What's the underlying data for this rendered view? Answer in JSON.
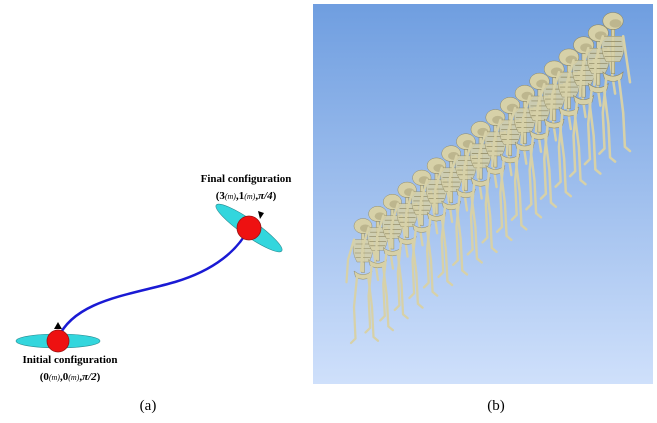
{
  "panel_a": {
    "caption": "(a)",
    "final_configuration": {
      "label": "Final configuration",
      "open_paren": "(",
      "x_value": "3",
      "y_value": "1",
      "unit": "(m)",
      "angle": "π/4",
      "close_paren": ")",
      "separator": ","
    },
    "initial_configuration": {
      "label": "Initial configuration",
      "open_paren": "(",
      "x_value": "0",
      "y_value": "0",
      "unit": "(m)",
      "angle": "π/2",
      "close_paren": ")",
      "separator": ","
    },
    "colors": {
      "path": "#1a1ad4",
      "robot_body": "#ee1111",
      "ellipse": "#33d6dd",
      "heading_marker": "#000000"
    }
  },
  "panel_b": {
    "caption": "(b)",
    "colors": {
      "background_top": "#6f9ee0",
      "background_bottom": "#cfe0fb",
      "skeleton": "#d7d1a8",
      "skeleton_shadow": "#8c855f"
    },
    "skeleton_count": 18
  }
}
